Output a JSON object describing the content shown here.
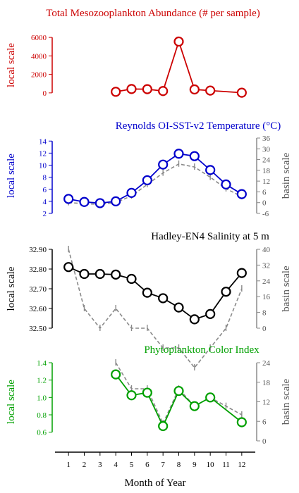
{
  "chart_data": [
    {
      "type": "line",
      "title": "Total Mesozooplankton Abundance (# per sample)",
      "ylabel": "local scale",
      "color": "#cc0000",
      "ylim": [
        -1000,
        7000
      ],
      "yticks": [
        0,
        2000,
        4000,
        6000
      ],
      "ytick_labels": [
        "0",
        "2000",
        "4000",
        "6000"
      ],
      "series": [
        {
          "role": "local",
          "x": [
            4,
            5,
            6,
            7,
            8,
            9,
            10,
            12
          ],
          "values": [
            120,
            420,
            400,
            200,
            5550,
            370,
            250,
            20
          ]
        }
      ]
    },
    {
      "type": "line",
      "title": "Reynolds OI-SST-v2 Temperature (°C)",
      "ylabel": "local scale",
      "y2label": "basin scale",
      "color": "#0000cc",
      "ylim": [
        2,
        14.5
      ],
      "yticks": [
        2,
        4,
        6,
        8,
        10,
        12,
        14
      ],
      "ytick_labels": [
        "2",
        "4",
        "6",
        "8",
        "10",
        "12",
        "14"
      ],
      "y2lim": [
        -6,
        36
      ],
      "y2ticks": [
        -6,
        0,
        6,
        12,
        18,
        24,
        30,
        36
      ],
      "y2tick_labels": [
        "-6",
        "0",
        "6",
        "12",
        "18",
        "24",
        "30",
        "36"
      ],
      "series": [
        {
          "role": "local",
          "x": [
            1,
            2,
            3,
            4,
            5,
            6,
            7,
            8,
            9,
            10,
            11,
            12
          ],
          "values": [
            4.4,
            3.9,
            3.7,
            4.0,
            5.4,
            7.5,
            10.1,
            11.9,
            11.5,
            9.2,
            6.8,
            5.2
          ]
        },
        {
          "role": "basin",
          "x": [
            1,
            2,
            3,
            4,
            5,
            6,
            7,
            8,
            9,
            10,
            11,
            12
          ],
          "values": [
            3.8,
            3.6,
            3.5,
            3.8,
            4.9,
            6.8,
            8.7,
            10.2,
            9.7,
            8.0,
            6.1,
            4.8
          ]
        }
      ]
    },
    {
      "type": "line",
      "title": "Hadley-EN4 Salinity at 5 m",
      "ylabel": "local scale",
      "y2label": "basin scale",
      "color": "#000000",
      "ylim": [
        32.5,
        32.9
      ],
      "yticks": [
        32.5,
        32.6,
        32.7,
        32.8,
        32.9
      ],
      "ytick_labels": [
        "32.50",
        "32.60",
        "32.70",
        "32.80",
        "32.90"
      ],
      "y2lim": [
        0,
        40
      ],
      "y2ticks": [
        0,
        8,
        16,
        24,
        32,
        40
      ],
      "y2tick_labels": [
        "0",
        "8",
        "16",
        "24",
        "32",
        "40"
      ],
      "series": [
        {
          "role": "local",
          "x": [
            1,
            2,
            3,
            4,
            5,
            6,
            7,
            8,
            9,
            10,
            11,
            12
          ],
          "values": [
            32.81,
            32.775,
            32.775,
            32.772,
            32.75,
            32.68,
            32.652,
            32.605,
            32.545,
            32.572,
            32.685,
            32.78
          ]
        },
        {
          "role": "basin",
          "x": [
            1,
            2,
            3,
            4,
            5,
            6,
            7,
            8,
            9,
            10,
            11,
            12
          ],
          "values": [
            32.9,
            32.6,
            32.5,
            32.6,
            32.5,
            32.5,
            32.4,
            32.4,
            32.3,
            32.4,
            32.5,
            32.7
          ]
        }
      ]
    },
    {
      "type": "line",
      "title": "Phytoplankton Color Index",
      "ylabel": "local scale",
      "y2label": "basin scale",
      "color": "#00a000",
      "ylim": [
        0.5,
        1.4
      ],
      "yticks": [
        0.6,
        0.8,
        1.0,
        1.2,
        1.4
      ],
      "ytick_labels": [
        "0.6",
        "0.8",
        "1.0",
        "1.2",
        "1.4"
      ],
      "y2lim": [
        0,
        24
      ],
      "y2ticks": [
        0,
        6,
        12,
        18,
        24
      ],
      "y2tick_labels": [
        "0",
        "6",
        "12",
        "18",
        "24"
      ],
      "series": [
        {
          "role": "local",
          "x": [
            4,
            5,
            6,
            7,
            8,
            9,
            10,
            12
          ],
          "values": [
            1.265,
            1.025,
            1.055,
            0.67,
            1.075,
            0.9,
            1.0,
            0.715
          ]
        },
        {
          "role": "basin",
          "x": [
            4,
            5,
            6,
            7,
            8,
            9,
            10,
            11,
            12
          ],
          "values": [
            1.4,
            1.1,
            1.1,
            0.7,
            1.1,
            0.9,
            1.0,
            0.9,
            0.8
          ]
        }
      ]
    }
  ],
  "xaxis": {
    "label": "Month of Year",
    "ticks": [
      1,
      2,
      3,
      4,
      5,
      6,
      7,
      8,
      9,
      10,
      11,
      12
    ],
    "tick_labels": [
      "1",
      "2",
      "3",
      "4",
      "5",
      "6",
      "7",
      "8",
      "9",
      "10",
      "11",
      "12"
    ],
    "xlim": [
      0.5,
      12.5
    ]
  },
  "basin_color": "#8a8a8a"
}
